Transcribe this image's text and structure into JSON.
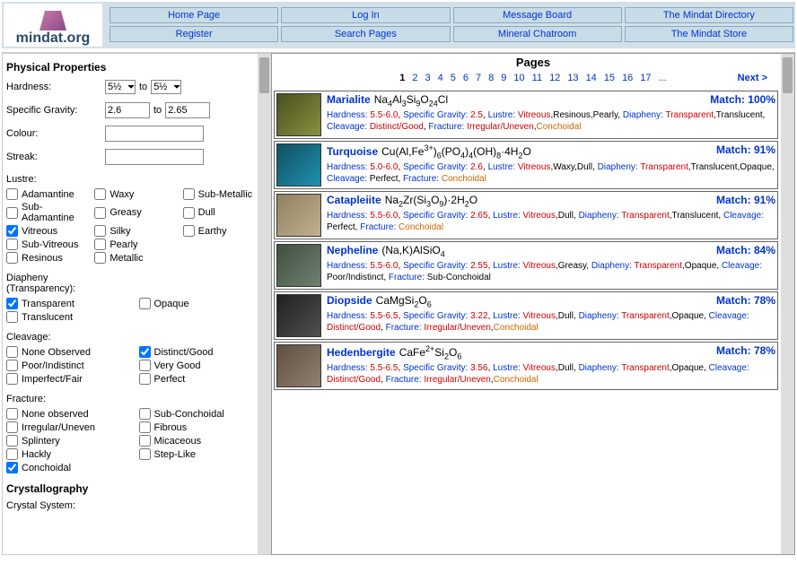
{
  "logo": "mindat.org",
  "nav": [
    [
      "Home Page",
      "Log In",
      "Message Board",
      "The Mindat Directory"
    ],
    [
      "Register",
      "Search Pages",
      "Mineral Chatroom",
      "The Mindat Store"
    ]
  ],
  "section1": "Physical Properties",
  "props": {
    "hardness": {
      "label": "Hardness:",
      "from": "5½",
      "to_label": "to",
      "to": "5½"
    },
    "sg": {
      "label": "Specific Gravity:",
      "from": "2.6",
      "to_label": "to",
      "to": "2.65"
    },
    "colour": {
      "label": "Colour:",
      "val": ""
    },
    "streak": {
      "label": "Streak:",
      "val": ""
    }
  },
  "lustre": {
    "label": "Lustre:",
    "items": [
      {
        "l": "Adamantine",
        "c": false
      },
      {
        "l": "Waxy",
        "c": false
      },
      {
        "l": "Sub-Metallic",
        "c": false
      },
      {
        "l": "Sub-Adamantine",
        "c": false
      },
      {
        "l": "Greasy",
        "c": false
      },
      {
        "l": "Dull",
        "c": false
      },
      {
        "l": "Vitreous",
        "c": true
      },
      {
        "l": "Silky",
        "c": false
      },
      {
        "l": "Earthy",
        "c": false
      },
      {
        "l": "Sub-Vitreous",
        "c": false
      },
      {
        "l": "Pearly",
        "c": false
      },
      {
        "l": "",
        "c": false
      },
      {
        "l": "Resinous",
        "c": false
      },
      {
        "l": "Metallic",
        "c": false
      }
    ]
  },
  "diapheny": {
    "label": "Diapheny (Transparency):",
    "items": [
      {
        "l": "Transparent",
        "c": true
      },
      {
        "l": "Opaque",
        "c": false
      },
      {
        "l": "Translucent",
        "c": false
      }
    ]
  },
  "cleavage": {
    "label": "Cleavage:",
    "items": [
      {
        "l": "None Observed",
        "c": false
      },
      {
        "l": "Distinct/Good",
        "c": true
      },
      {
        "l": "Poor/Indistinct",
        "c": false
      },
      {
        "l": "Very Good",
        "c": false
      },
      {
        "l": "Imperfect/Fair",
        "c": false
      },
      {
        "l": "Perfect",
        "c": false
      }
    ]
  },
  "fracture": {
    "label": "Fracture:",
    "items": [
      {
        "l": "None observed",
        "c": false
      },
      {
        "l": "Sub-Conchoidal",
        "c": false
      },
      {
        "l": "Irregular/Uneven",
        "c": false
      },
      {
        "l": "Fibrous",
        "c": false
      },
      {
        "l": "Splintery",
        "c": false
      },
      {
        "l": "Micaceous",
        "c": false
      },
      {
        "l": "Hackly",
        "c": false
      },
      {
        "l": "Step-Like",
        "c": false
      },
      {
        "l": "Conchoidal",
        "c": true
      }
    ]
  },
  "section2": "Crystallography",
  "crystal_system": "Crystal System:",
  "pages_hdr": "Pages",
  "pages_nums": [
    "1",
    "2",
    "3",
    "4",
    "5",
    "6",
    "7",
    "8",
    "9",
    "10",
    "11",
    "12",
    "13",
    "14",
    "15",
    "16",
    "17",
    "..."
  ],
  "next": "Next >",
  "results": [
    {
      "name": "Marialite",
      "formula": "Na<sub>4</sub>Al<sub>3</sub>Si<sub>9</sub>O<sub>24</sub>Cl",
      "match": "Match: 100%",
      "c": "c1",
      "p": "<span class='pl'>Hardness:</span> <span class='pv-red'>5.5-6.0</span>, <span class='pl'>Specific Gravity:</span> <span class='pv-red'>2.5</span>, <span class='pl'>Lustre:</span> <span class='pv-red'>Vitreous</span>,Resinous,Pearly, <span class='pl'>Diapheny:</span> <span class='pv-red'>Transparent</span>,Translucent, <span class='pl'>Cleavage:</span> <span class='pv-red'>Distinct/Good</span>, <span class='pl'>Fracture:</span> <span class='pv-red'>Irregular/Uneven</span>,<span class='pv-orange'>Conchoidal</span>"
    },
    {
      "name": "Turquoise",
      "formula": "Cu(Al,Fe<sup>3+</sup>)<sub>6</sub>(PO<sub>4</sub>)<sub>4</sub>(OH)<sub>8</sub>·4H<sub>2</sub>O",
      "match": "Match: 91%",
      "c": "c2",
      "p": "<span class='pl'>Hardness:</span> <span class='pv-red'>5.0-6.0</span>, <span class='pl'>Specific Gravity:</span> <span class='pv-red'>2.6</span>, <span class='pl'>Lustre:</span> <span class='pv-red'>Vitreous</span>,Waxy,Dull, <span class='pl'>Diapheny:</span> <span class='pv-red'>Transparent</span>,Translucent,Opaque, <span class='pl'>Cleavage:</span> Perfect, <span class='pl'>Fracture:</span> <span class='pv-orange'>Conchoidal</span>"
    },
    {
      "name": "Catapleiite",
      "formula": "Na<sub>2</sub>Zr(Si<sub>3</sub>O<sub>9</sub>)·2H<sub>2</sub>O",
      "match": "Match: 91%",
      "c": "c3",
      "p": "<span class='pl'>Hardness:</span> <span class='pv-red'>5.5-6.0</span>, <span class='pl'>Specific Gravity:</span> <span class='pv-red'>2.65</span>, <span class='pl'>Lustre:</span> <span class='pv-red'>Vitreous</span>,Dull, <span class='pl'>Diapheny:</span> <span class='pv-red'>Transparent</span>,Translucent, <span class='pl'>Cleavage:</span> Perfect, <span class='pl'>Fracture:</span> <span class='pv-orange'>Conchoidal</span>"
    },
    {
      "name": "Nepheline",
      "formula": "(Na,K)AlSiO<sub>4</sub>",
      "match": "Match: 84%",
      "c": "c4",
      "p": "<span class='pl'>Hardness:</span> <span class='pv-red'>5.5-6.0</span>, <span class='pl'>Specific Gravity:</span> <span class='pv-red'>2.55</span>, <span class='pl'>Lustre:</span> <span class='pv-red'>Vitreous</span>,Greasy, <span class='pl'>Diapheny:</span> <span class='pv-red'>Transparent</span>,Opaque, <span class='pl'>Cleavage:</span> Poor/Indistinct, <span class='pl'>Fracture:</span> Sub-Conchoidal"
    },
    {
      "name": "Diopside",
      "formula": "CaMgSi<sub>2</sub>O<sub>6</sub>",
      "match": "Match: 78%",
      "c": "c5",
      "p": "<span class='pl'>Hardness:</span> <span class='pv-red'>5.5-6.5</span>, <span class='pl'>Specific Gravity:</span> <span class='pv-red'>3.22</span>, <span class='pl'>Lustre:</span> <span class='pv-red'>Vitreous</span>,Dull, <span class='pl'>Diapheny:</span> <span class='pv-red'>Transparent</span>,Opaque, <span class='pl'>Cleavage:</span> <span class='pv-red'>Distinct/Good</span>, <span class='pl'>Fracture:</span> <span class='pv-red'>Irregular/Uneven</span>,<span class='pv-orange'>Conchoidal</span>"
    },
    {
      "name": "Hedenbergite",
      "formula": "CaFe<sup>2+</sup>Si<sub>2</sub>O<sub>6</sub>",
      "match": "Match: 78%",
      "c": "c6",
      "p": "<span class='pl'>Hardness:</span> <span class='pv-red'>5.5-6.5</span>, <span class='pl'>Specific Gravity:</span> <span class='pv-red'>3.56</span>, <span class='pl'>Lustre:</span> <span class='pv-red'>Vitreous</span>,Dull, <span class='pl'>Diapheny:</span> <span class='pv-red'>Transparent</span>,Opaque, <span class='pl'>Cleavage:</span> <span class='pv-red'>Distinct/Good</span>, <span class='pl'>Fracture:</span> <span class='pv-red'>Irregular/Uneven</span>,<span class='pv-orange'>Conchoidal</span>"
    }
  ]
}
